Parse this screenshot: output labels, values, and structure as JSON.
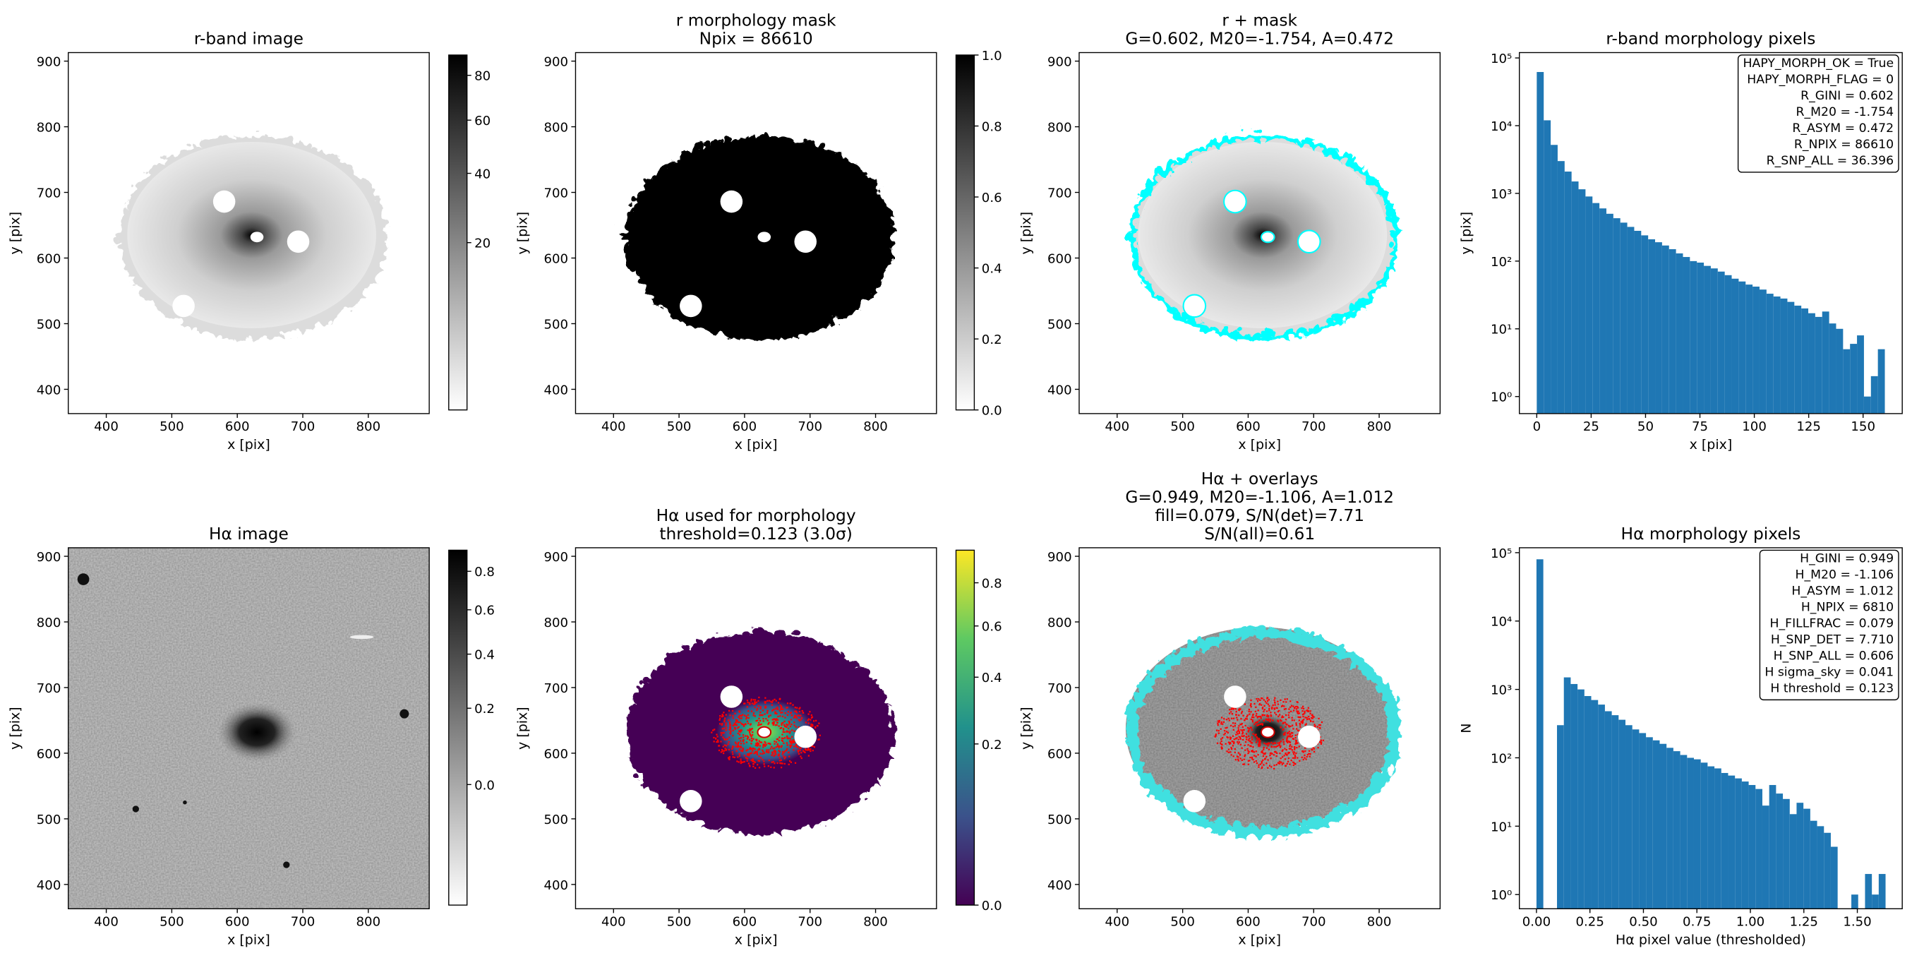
{
  "chart_data": [
    {
      "type": "image",
      "title": "r-band image",
      "xlabel": "x [pix]",
      "ylabel": "y [pix]",
      "xlim": [
        342,
        893
      ],
      "ylim": [
        363,
        913
      ],
      "xticks": [
        400,
        500,
        600,
        700,
        800
      ],
      "yticks": [
        400,
        500,
        600,
        700,
        800,
        900
      ],
      "colorbar": {
        "cmap": "gray_r",
        "scale": "sqrt",
        "clim": [
          0,
          90
        ],
        "ticks": [
          20,
          40,
          60,
          80
        ]
      }
    },
    {
      "type": "image",
      "title": [
        "r morphology mask",
        "Npix = 86610"
      ],
      "xlabel": "x [pix]",
      "ylabel": "y [pix]",
      "xlim": [
        342,
        893
      ],
      "ylim": [
        363,
        913
      ],
      "xticks": [
        400,
        500,
        600,
        700,
        800
      ],
      "yticks": [
        400,
        500,
        600,
        700,
        800,
        900
      ],
      "colorbar": {
        "cmap": "gray_r",
        "scale": "linear",
        "clim": [
          0,
          1
        ],
        "ticks": [
          {
            "value": 0,
            "label": "0.0"
          },
          0.2,
          0.4,
          0.6,
          0.8,
          {
            "value": 1,
            "label": "1.0"
          }
        ]
      }
    },
    {
      "type": "image",
      "title": [
        "r + mask",
        "G=0.602, M20=-1.754, A=0.472"
      ],
      "xlabel": "x [pix]",
      "ylabel": "y [pix]",
      "xlim": [
        342,
        893
      ],
      "ylim": [
        363,
        913
      ],
      "xticks": [
        400,
        500,
        600,
        700,
        800
      ],
      "yticks": [
        400,
        500,
        600,
        700,
        800,
        900
      ]
    },
    {
      "type": "histogram",
      "title": "r-band morphology pixels",
      "xlabel": "x [pix]",
      "ylabel": "y [pix]",
      "color": "#1f77b4",
      "yscale": "log",
      "xlim": [
        -8,
        168
      ],
      "ylim": [
        0.56,
        120000
      ],
      "xticks": [
        0,
        25,
        50,
        75,
        100,
        125,
        150
      ],
      "yticks": [
        {
          "value": 1,
          "label": "10⁰"
        },
        {
          "value": 10,
          "label": "10¹"
        },
        {
          "value": 100,
          "label": "10²"
        },
        {
          "value": 1000,
          "label": "10³"
        },
        {
          "value": 10000,
          "label": "10⁴"
        },
        {
          "value": 100000,
          "label": "10⁵"
        }
      ],
      "bins": [
        0,
        3.2,
        6.4,
        9.6,
        12.8,
        16,
        19.2,
        22.4,
        25.6,
        28.8,
        32,
        35.2,
        38.4,
        41.6,
        44.8,
        48,
        51.2,
        54.4,
        57.6,
        60.8,
        64,
        67.2,
        70.4,
        73.6,
        76.8,
        80,
        83.2,
        86.4,
        89.6,
        92.8,
        96,
        99.2,
        102.4,
        105.6,
        108.8,
        112,
        115.2,
        118.4,
        121.6,
        124.8,
        128,
        131.2,
        134.4,
        137.6,
        140.8,
        144,
        147.2,
        150.4,
        153.6,
        156.8,
        160
      ],
      "counts": [
        62000,
        12000,
        5200,
        3000,
        2100,
        1500,
        1150,
        900,
        720,
        600,
        500,
        430,
        370,
        320,
        280,
        240,
        210,
        190,
        170,
        150,
        130,
        115,
        100,
        95,
        85,
        78,
        70,
        62,
        55,
        50,
        45,
        42,
        38,
        33,
        30,
        28,
        25,
        22,
        20,
        17,
        15,
        18,
        12,
        10,
        5,
        6,
        8,
        1,
        2,
        5
      ],
      "annotation": [
        "HAPY_MORPH_OK = True",
        "HAPY_MORPH_FLAG = 0",
        "R_GINI = 0.602",
        "R_M20 = -1.754",
        "R_ASYM = 0.472",
        "R_NPIX = 86610",
        "R_SNP_ALL = 36.396"
      ]
    },
    {
      "type": "image",
      "title": "Hα image",
      "xlabel": "x [pix]",
      "ylabel": "y [pix]",
      "xlim": [
        342,
        893
      ],
      "ylim": [
        363,
        913
      ],
      "xticks": [
        400,
        500,
        600,
        700,
        800
      ],
      "yticks": [
        400,
        500,
        600,
        700,
        800,
        900
      ],
      "colorbar": {
        "cmap": "gray_r",
        "scale": "sqrt",
        "clim": [
          -0.12,
          0.92
        ],
        "ticks": [
          {
            "value": 0,
            "label": "0.0"
          },
          0.2,
          0.4,
          0.6,
          0.8
        ]
      }
    },
    {
      "type": "image",
      "title": [
        "Hα used for morphology",
        "threshold=0.123 (3.0σ)"
      ],
      "xlabel": "x [pix]",
      "ylabel": "y [pix]",
      "xlim": [
        342,
        893
      ],
      "ylim": [
        363,
        913
      ],
      "xticks": [
        400,
        500,
        600,
        700,
        800
      ],
      "yticks": [
        400,
        500,
        600,
        700,
        800,
        900
      ],
      "colorbar": {
        "cmap": "viridis",
        "scale": "sqrt",
        "clim": [
          0,
          0.97
        ],
        "ticks": [
          {
            "value": 0,
            "label": "0.0"
          },
          0.2,
          0.4,
          0.6,
          0.8
        ]
      }
    },
    {
      "type": "image",
      "title": [
        "Hα + overlays",
        "G=0.949, M20=-1.106, A=1.012",
        "fill=0.079, S/N(det)=7.71",
        "S/N(all)=0.61"
      ],
      "xlabel": "x [pix]",
      "ylabel": "y [pix]",
      "xlim": [
        342,
        893
      ],
      "ylim": [
        363,
        913
      ],
      "xticks": [
        400,
        500,
        600,
        700,
        800
      ],
      "yticks": [
        400,
        500,
        600,
        700,
        800,
        900
      ]
    },
    {
      "type": "histogram",
      "title": "Hα morphology pixels",
      "xlabel": "Hα pixel value (thresholded)",
      "ylabel": "N",
      "color": "#1f77b4",
      "yscale": "log",
      "xlim": [
        -0.08,
        1.71
      ],
      "ylim": [
        0.62,
        118000
      ],
      "xticks": [
        {
          "value": 0,
          "label": "0.00"
        },
        0.25,
        {
          "value": 0.5,
          "label": "0.50"
        },
        0.75,
        {
          "value": 1,
          "label": "1.00"
        },
        1.25,
        {
          "value": 1.5,
          "label": "1.50"
        }
      ],
      "yticks": [
        {
          "value": 1,
          "label": "10⁰"
        },
        {
          "value": 10,
          "label": "10¹"
        },
        {
          "value": 100,
          "label": "10²"
        },
        {
          "value": 1000,
          "label": "10³"
        },
        {
          "value": 10000,
          "label": "10⁴"
        },
        {
          "value": 100000,
          "label": "10⁵"
        }
      ],
      "bins": [
        0,
        0.032,
        0.064,
        0.096,
        0.128,
        0.16,
        0.192,
        0.224,
        0.256,
        0.288,
        0.32,
        0.352,
        0.384,
        0.416,
        0.448,
        0.48,
        0.512,
        0.544,
        0.576,
        0.608,
        0.64,
        0.672,
        0.704,
        0.736,
        0.768,
        0.8,
        0.832,
        0.864,
        0.896,
        0.928,
        0.96,
        0.992,
        1.024,
        1.056,
        1.088,
        1.12,
        1.152,
        1.184,
        1.216,
        1.248,
        1.28,
        1.312,
        1.344,
        1.376,
        1.408,
        1.44,
        1.472,
        1.504,
        1.536,
        1.568,
        1.6,
        1.632
      ],
      "counts": [
        80000,
        0,
        0,
        300,
        1500,
        1200,
        1000,
        800,
        700,
        600,
        480,
        420,
        360,
        300,
        260,
        230,
        200,
        180,
        160,
        140,
        125,
        110,
        100,
        95,
        85,
        75,
        70,
        60,
        55,
        50,
        45,
        40,
        35,
        20,
        40,
        30,
        25,
        15,
        22,
        18,
        12,
        10,
        8,
        5,
        0,
        0,
        1,
        0,
        2,
        1,
        2
      ],
      "annotation": [
        "H_GINI = 0.949",
        "H_M20 = -1.106",
        "H_ASYM = 1.012",
        "H_NPIX = 6810",
        "H_FILLFRAC = 0.079",
        "H_SNP_DET = 7.710",
        "H_SNP_ALL = 0.606",
        "H sigma_sky = 0.041",
        "H threshold = 0.123"
      ]
    }
  ]
}
